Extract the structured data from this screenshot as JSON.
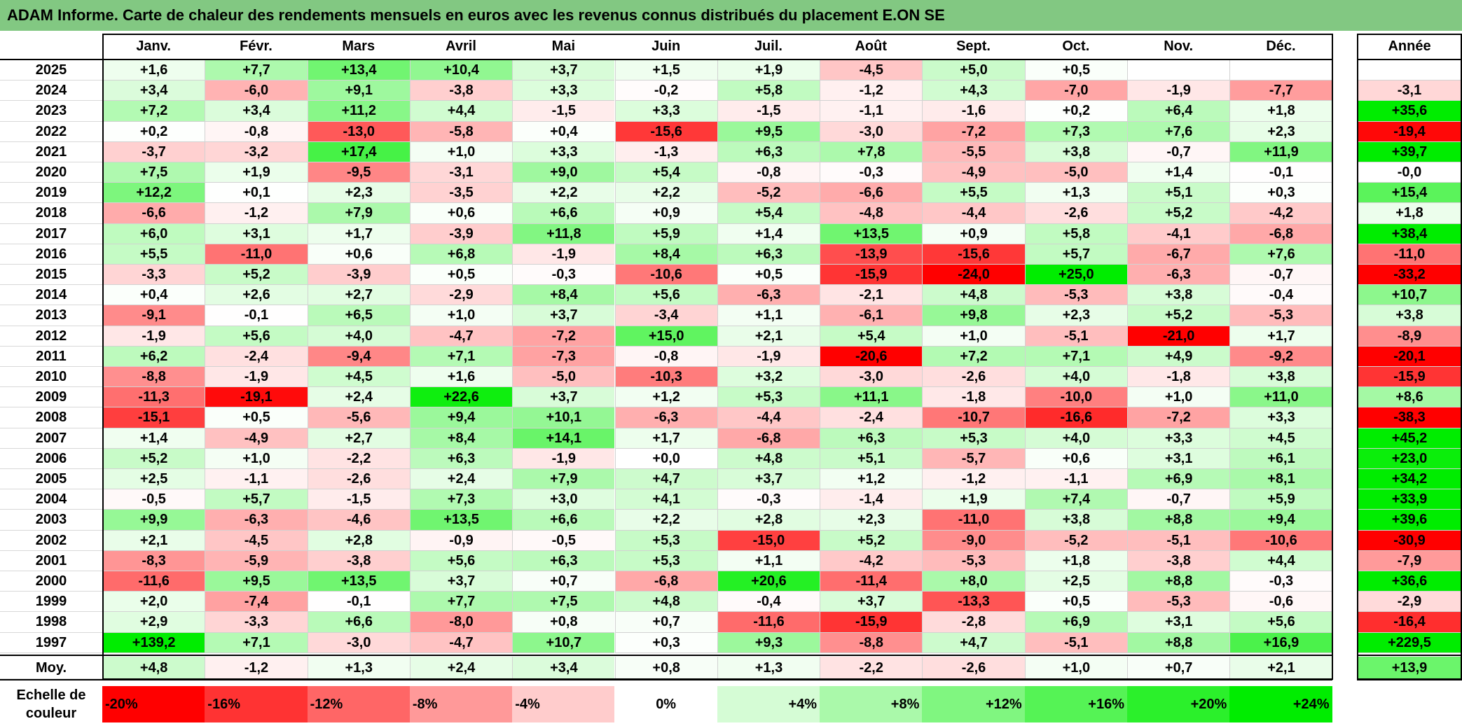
{
  "title": "ADAM Informe. Carte de chaleur des rendements mensuels en euros avec les revenus connus distribués du placement E.ON SE",
  "chart_data": {
    "type": "heatmap",
    "title": "ADAM Informe. Carte de chaleur des rendements mensuels en euros avec les revenus connus distribués du placement E.ON SE",
    "columns": [
      "Janv.",
      "Févr.",
      "Mars",
      "Avril",
      "Mai",
      "Juin",
      "Juil.",
      "Août",
      "Sept.",
      "Oct.",
      "Nov.",
      "Déc."
    ],
    "annual_header": "Année",
    "rows": [
      {
        "year": "2025",
        "values": [
          "+1,6",
          "+7,7",
          "+13,4",
          "+10,4",
          "+3,7",
          "+1,5",
          "+1,9",
          "-4,5",
          "+5,0",
          "+0,5",
          "",
          ""
        ],
        "annual": ""
      },
      {
        "year": "2024",
        "values": [
          "+3,4",
          "-6,0",
          "+9,1",
          "-3,8",
          "+3,3",
          "-0,2",
          "+5,8",
          "-1,2",
          "+4,3",
          "-7,0",
          "-1,9",
          "-7,7"
        ],
        "annual": "-3,1"
      },
      {
        "year": "2023",
        "values": [
          "+7,2",
          "+3,4",
          "+11,2",
          "+4,4",
          "-1,5",
          "+3,3",
          "-1,5",
          "-1,1",
          "-1,6",
          "+0,2",
          "+6,4",
          "+1,8"
        ],
        "annual": "+35,6"
      },
      {
        "year": "2022",
        "values": [
          "+0,2",
          "-0,8",
          "-13,0",
          "-5,8",
          "+0,4",
          "-15,6",
          "+9,5",
          "-3,0",
          "-7,2",
          "+7,3",
          "+7,6",
          "+2,3"
        ],
        "annual": "-19,4"
      },
      {
        "year": "2021",
        "values": [
          "-3,7",
          "-3,2",
          "+17,4",
          "+1,0",
          "+3,3",
          "-1,3",
          "+6,3",
          "+7,8",
          "-5,5",
          "+3,8",
          "-0,7",
          "+11,9"
        ],
        "annual": "+39,7"
      },
      {
        "year": "2020",
        "values": [
          "+7,5",
          "+1,9",
          "-9,5",
          "-3,1",
          "+9,0",
          "+5,4",
          "-0,8",
          "-0,3",
          "-4,9",
          "-5,0",
          "+1,4",
          "-0,1"
        ],
        "annual": "-0,0"
      },
      {
        "year": "2019",
        "values": [
          "+12,2",
          "+0,1",
          "+2,3",
          "-3,5",
          "+2,2",
          "+2,2",
          "-5,2",
          "-6,6",
          "+5,5",
          "+1,3",
          "+5,1",
          "+0,3"
        ],
        "annual": "+15,4"
      },
      {
        "year": "2018",
        "values": [
          "-6,6",
          "-1,2",
          "+7,9",
          "+0,6",
          "+6,6",
          "+0,9",
          "+5,4",
          "-4,8",
          "-4,4",
          "-2,6",
          "+5,2",
          "-4,2"
        ],
        "annual": "+1,8"
      },
      {
        "year": "2017",
        "values": [
          "+6,0",
          "+3,1",
          "+1,7",
          "-3,9",
          "+11,8",
          "+5,9",
          "+1,4",
          "+13,5",
          "+0,9",
          "+5,8",
          "-4,1",
          "-6,8"
        ],
        "annual": "+38,4"
      },
      {
        "year": "2016",
        "values": [
          "+5,5",
          "-11,0",
          "+0,6",
          "+6,8",
          "-1,9",
          "+8,4",
          "+6,3",
          "-13,9",
          "-15,6",
          "+5,7",
          "-6,7",
          "+7,6"
        ],
        "annual": "-11,0"
      },
      {
        "year": "2015",
        "values": [
          "-3,3",
          "+5,2",
          "-3,9",
          "+0,5",
          "-0,3",
          "-10,6",
          "+0,5",
          "-15,9",
          "-24,0",
          "+25,0",
          "-6,3",
          "-0,7"
        ],
        "annual": "-33,2"
      },
      {
        "year": "2014",
        "values": [
          "+0,4",
          "+2,6",
          "+2,7",
          "-2,9",
          "+8,4",
          "+5,6",
          "-6,3",
          "-2,1",
          "+4,8",
          "-5,3",
          "+3,8",
          "-0,4"
        ],
        "annual": "+10,7"
      },
      {
        "year": "2013",
        "values": [
          "-9,1",
          "-0,1",
          "+6,5",
          "+1,0",
          "+3,7",
          "-3,4",
          "+1,1",
          "-6,1",
          "+9,8",
          "+2,3",
          "+5,2",
          "-5,3"
        ],
        "annual": "+3,8"
      },
      {
        "year": "2012",
        "values": [
          "-1,9",
          "+5,6",
          "+4,0",
          "-4,7",
          "-7,2",
          "+15,0",
          "+2,1",
          "+5,4",
          "+1,0",
          "-5,1",
          "-21,0",
          "+1,7"
        ],
        "annual": "-8,9"
      },
      {
        "year": "2011",
        "values": [
          "+6,2",
          "-2,4",
          "-9,4",
          "+7,1",
          "-7,3",
          "-0,8",
          "-1,9",
          "-20,6",
          "+7,2",
          "+7,1",
          "+4,9",
          "-9,2"
        ],
        "annual": "-20,1"
      },
      {
        "year": "2010",
        "values": [
          "-8,8",
          "-1,9",
          "+4,5",
          "+1,6",
          "-5,0",
          "-10,3",
          "+3,2",
          "-3,0",
          "-2,6",
          "+4,0",
          "-1,8",
          "+3,8"
        ],
        "annual": "-15,9"
      },
      {
        "year": "2009",
        "values": [
          "-11,3",
          "-19,1",
          "+2,4",
          "+22,6",
          "+3,7",
          "+1,2",
          "+5,3",
          "+11,1",
          "-1,8",
          "-10,0",
          "+1,0",
          "+11,0"
        ],
        "annual": "+8,6"
      },
      {
        "year": "2008",
        "values": [
          "-15,1",
          "+0,5",
          "-5,6",
          "+9,4",
          "+10,1",
          "-6,3",
          "-4,4",
          "-2,4",
          "-10,7",
          "-16,6",
          "-7,2",
          "+3,3"
        ],
        "annual": "-38,3"
      },
      {
        "year": "2007",
        "values": [
          "+1,4",
          "-4,9",
          "+2,7",
          "+8,4",
          "+14,1",
          "+1,7",
          "-6,8",
          "+6,3",
          "+5,3",
          "+4,0",
          "+3,3",
          "+4,5"
        ],
        "annual": "+45,2"
      },
      {
        "year": "2006",
        "values": [
          "+5,2",
          "+1,0",
          "-2,2",
          "+6,3",
          "-1,9",
          "+0,0",
          "+4,8",
          "+5,1",
          "-5,7",
          "+0,6",
          "+3,1",
          "+6,1"
        ],
        "annual": "+23,0"
      },
      {
        "year": "2005",
        "values": [
          "+2,5",
          "-1,1",
          "-2,6",
          "+2,4",
          "+7,9",
          "+4,7",
          "+3,7",
          "+1,2",
          "-1,2",
          "-1,1",
          "+6,9",
          "+8,1"
        ],
        "annual": "+34,2"
      },
      {
        "year": "2004",
        "values": [
          "-0,5",
          "+5,7",
          "-1,5",
          "+7,3",
          "+3,0",
          "+4,1",
          "-0,3",
          "-1,4",
          "+1,9",
          "+7,4",
          "-0,7",
          "+5,9"
        ],
        "annual": "+33,9"
      },
      {
        "year": "2003",
        "values": [
          "+9,9",
          "-6,3",
          "-4,6",
          "+13,5",
          "+6,6",
          "+2,2",
          "+2,8",
          "+2,3",
          "-11,0",
          "+3,8",
          "+8,8",
          "+9,4"
        ],
        "annual": "+39,6"
      },
      {
        "year": "2002",
        "values": [
          "+2,1",
          "-4,5",
          "+2,8",
          "-0,9",
          "-0,5",
          "+5,3",
          "-15,0",
          "+5,2",
          "-9,0",
          "-5,2",
          "-5,1",
          "-10,6"
        ],
        "annual": "-30,9"
      },
      {
        "year": "2001",
        "values": [
          "-8,3",
          "-5,9",
          "-3,8",
          "+5,6",
          "+6,3",
          "+5,3",
          "+1,1",
          "-4,2",
          "-5,3",
          "+1,8",
          "-3,8",
          "+4,4"
        ],
        "annual": "-7,9"
      },
      {
        "year": "2000",
        "values": [
          "-11,6",
          "+9,5",
          "+13,5",
          "+3,7",
          "+0,7",
          "-6,8",
          "+20,6",
          "-11,4",
          "+8,0",
          "+2,5",
          "+8,8",
          "-0,3"
        ],
        "annual": "+36,6"
      },
      {
        "year": "1999",
        "values": [
          "+2,0",
          "-7,4",
          "-0,1",
          "+7,7",
          "+7,5",
          "+4,8",
          "-0,4",
          "+3,7",
          "-13,3",
          "+0,5",
          "-5,3",
          "-0,6"
        ],
        "annual": "-2,9"
      },
      {
        "year": "1998",
        "values": [
          "+2,9",
          "-3,3",
          "+6,6",
          "-8,0",
          "+0,8",
          "+0,7",
          "-11,6",
          "-15,9",
          "-2,8",
          "+6,9",
          "+3,1",
          "+5,6"
        ],
        "annual": "-16,4"
      },
      {
        "year": "1997",
        "values": [
          "+139,2",
          "+7,1",
          "-3,0",
          "-4,7",
          "+10,7",
          "+0,3",
          "+9,3",
          "-8,8",
          "+4,7",
          "-5,1",
          "+8,8",
          "+16,9"
        ],
        "annual": "+229,5"
      }
    ],
    "average": {
      "label": "Moy.",
      "values": [
        "+4,8",
        "-1,2",
        "+1,3",
        "+2,4",
        "+3,4",
        "+0,8",
        "+1,3",
        "-2,2",
        "-2,6",
        "+1,0",
        "+0,7",
        "+2,1"
      ],
      "annual": "+13,9"
    },
    "color_scale": {
      "label": "Echelle de couleur",
      "stops": [
        {
          "label": "-20%",
          "value": -20,
          "color": "#ff0000"
        },
        {
          "label": "-16%",
          "value": -16,
          "color": "#ff3333"
        },
        {
          "label": "-12%",
          "value": -12,
          "color": "#ff6666"
        },
        {
          "label": "-8%",
          "value": -8,
          "color": "#ff9999"
        },
        {
          "label": "-4%",
          "value": -4,
          "color": "#ffcccc"
        },
        {
          "label": "0%",
          "value": 0,
          "color": "#ffffff"
        },
        {
          "label": "+4%",
          "value": 4,
          "color": "#d5fcd5"
        },
        {
          "label": "+8%",
          "value": 8,
          "color": "#aaf9aa"
        },
        {
          "label": "+12%",
          "value": 12,
          "color": "#80f680"
        },
        {
          "label": "+16%",
          "value": 16,
          "color": "#55f355"
        },
        {
          "label": "+20%",
          "value": 20,
          "color": "#2bf02b"
        },
        {
          "label": "+24%",
          "value": 24,
          "color": "#00ed00"
        }
      ]
    }
  }
}
